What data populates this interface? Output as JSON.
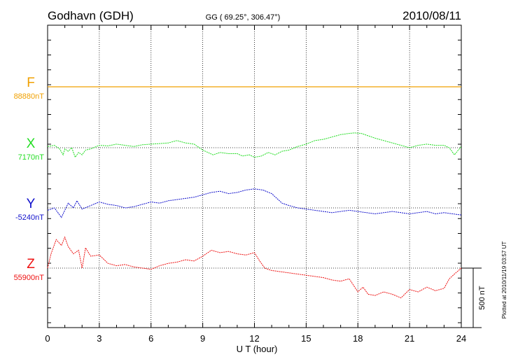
{
  "chart_data": {
    "type": "line",
    "title": "Godhavn (GDH)",
    "subtitle": "GG ( 69.25°, 306.47°)",
    "date": "2010/08/11",
    "xlabel": "U T (hour)",
    "x_ticks": [
      "0",
      "3",
      "6",
      "9",
      "12",
      "15",
      "18",
      "21",
      "24"
    ],
    "xlim": [
      0,
      24
    ],
    "scale_label": "500 nT",
    "scale_nT": 500,
    "plotted_note": "Plotted at 2010/11/19 03:57 UT",
    "series": [
      {
        "name": "F",
        "baseline_label": "88880nT",
        "baseline_nT": 88880,
        "color": "#f0a000",
        "x": [
          0,
          24
        ],
        "y": [
          0,
          0
        ]
      },
      {
        "name": "X",
        "baseline_label": "7170nT",
        "baseline_nT": 7170,
        "color": "#22dd22",
        "x": [
          0,
          0.4,
          0.7,
          0.9,
          1.0,
          1.2,
          1.4,
          1.6,
          1.8,
          2.0,
          2.2,
          2.5,
          3.0,
          3.5,
          4.0,
          4.5,
          5.0,
          5.5,
          6.0,
          6.5,
          7.0,
          7.5,
          8.0,
          8.5,
          9.0,
          9.3,
          9.6,
          10.0,
          10.5,
          11.0,
          11.3,
          11.7,
          12.0,
          12.4,
          12.8,
          13.2,
          13.6,
          14.0,
          14.5,
          15.0,
          15.5,
          16.0,
          16.5,
          17.0,
          17.5,
          17.8,
          18.2,
          18.6,
          19.0,
          19.5,
          20.0,
          20.5,
          21.0,
          21.5,
          22.0,
          22.5,
          23.0,
          23.3,
          23.6,
          24.0
        ],
        "y": [
          10,
          20,
          -10,
          -60,
          -10,
          -30,
          0,
          -80,
          -40,
          -60,
          -20,
          -10,
          20,
          15,
          30,
          20,
          10,
          25,
          30,
          35,
          40,
          60,
          40,
          30,
          -20,
          -40,
          -60,
          -40,
          -50,
          -50,
          -70,
          -60,
          -80,
          -70,
          -40,
          -60,
          -30,
          -20,
          10,
          30,
          60,
          70,
          90,
          110,
          120,
          125,
          120,
          100,
          80,
          60,
          40,
          20,
          0,
          20,
          30,
          20,
          20,
          0,
          -60,
          10
        ]
      },
      {
        "name": "Y",
        "baseline_label": "-5240nT",
        "baseline_nT": -5240,
        "color": "#1010cc",
        "x": [
          0,
          0.4,
          0.8,
          1.0,
          1.2,
          1.5,
          1.7,
          2.0,
          2.5,
          3.0,
          3.5,
          4.0,
          4.5,
          5.0,
          5.5,
          6.0,
          6.5,
          7.0,
          7.5,
          8.0,
          8.5,
          9.0,
          9.5,
          10.0,
          10.5,
          11.0,
          11.5,
          12.0,
          12.5,
          13.0,
          13.3,
          13.6,
          14.0,
          14.5,
          15.0,
          15.5,
          16.0,
          16.5,
          17.0,
          17.5,
          18.0,
          18.5,
          19.0,
          19.5,
          20.0,
          20.5,
          21.0,
          21.5,
          22.0,
          22.5,
          23.0,
          23.5,
          24.0
        ],
        "y": [
          -20,
          0,
          -80,
          -20,
          40,
          0,
          60,
          -10,
          20,
          50,
          30,
          20,
          0,
          10,
          30,
          50,
          40,
          60,
          70,
          80,
          90,
          110,
          130,
          140,
          120,
          130,
          150,
          160,
          150,
          120,
          80,
          40,
          20,
          0,
          -10,
          -20,
          -30,
          -40,
          -30,
          -20,
          -30,
          -40,
          -50,
          -40,
          -30,
          -40,
          -50,
          -40,
          -30,
          -50,
          -40,
          -50,
          -60
        ]
      },
      {
        "name": "Z",
        "baseline_label": "55900nT",
        "baseline_nT": 55900,
        "color": "#ee1111",
        "x": [
          0,
          0.2,
          0.5,
          0.8,
          1.0,
          1.2,
          1.5,
          1.8,
          2.0,
          2.2,
          2.5,
          3.0,
          3.5,
          4.0,
          4.5,
          5.0,
          5.5,
          6.0,
          6.5,
          7.0,
          7.5,
          8.0,
          8.5,
          9.0,
          9.5,
          10.0,
          10.5,
          11.0,
          11.5,
          12.0,
          12.3,
          12.6,
          13.0,
          13.5,
          14.0,
          14.5,
          15.0,
          15.5,
          16.0,
          16.5,
          17.0,
          17.5,
          18.0,
          18.3,
          18.6,
          19.0,
          19.5,
          20.0,
          20.5,
          21.0,
          21.5,
          22.0,
          22.5,
          23.0,
          23.3,
          23.6,
          24.0
        ],
        "y": [
          0,
          120,
          240,
          190,
          260,
          180,
          120,
          150,
          0,
          170,
          100,
          110,
          40,
          20,
          30,
          10,
          0,
          -10,
          20,
          40,
          50,
          70,
          60,
          100,
          150,
          130,
          140,
          120,
          110,
          130,
          60,
          0,
          -20,
          -30,
          -40,
          -50,
          -60,
          -70,
          -80,
          -100,
          -110,
          -90,
          -200,
          -160,
          -220,
          -230,
          -200,
          -220,
          -250,
          -180,
          -200,
          -160,
          -190,
          -170,
          -90,
          -50,
          0
        ]
      }
    ]
  }
}
